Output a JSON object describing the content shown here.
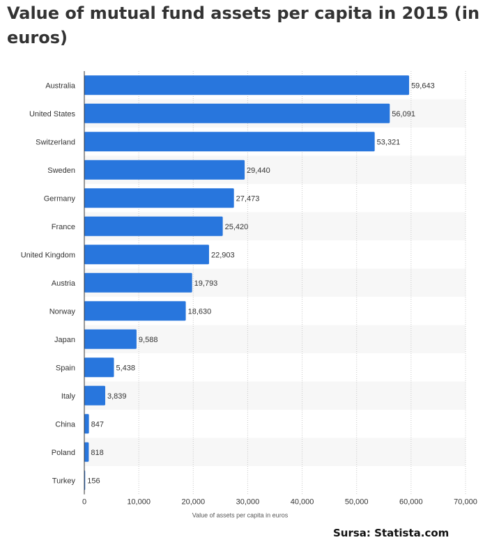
{
  "title": "Value of mutual fund assets per capita in 2015 (in euros)",
  "source": "Sursa: Statista.com",
  "chart_data": {
    "type": "bar",
    "orientation": "horizontal",
    "title": "Value of mutual fund assets per capita in 2015 (in euros)",
    "xlabel": "Value of assets per capita in euros",
    "ylabel": "",
    "xlim": [
      0,
      70000
    ],
    "xticks": [
      0,
      10000,
      20000,
      30000,
      40000,
      50000,
      60000,
      70000
    ],
    "xtick_labels": [
      "0",
      "10,000",
      "20,000",
      "30,000",
      "40,000",
      "50,000",
      "60,000",
      "70,000"
    ],
    "grid": true,
    "categories": [
      "Australia",
      "United States",
      "Switzerland",
      "Sweden",
      "Germany",
      "France",
      "United Kingdom",
      "Austria",
      "Norway",
      "Japan",
      "Spain",
      "Italy",
      "China",
      "Poland",
      "Turkey"
    ],
    "values": [
      59643,
      56091,
      53321,
      29440,
      27473,
      25420,
      22903,
      19793,
      18630,
      9588,
      5438,
      3839,
      847,
      818,
      156
    ],
    "value_labels": [
      "59,643",
      "56,091",
      "53,321",
      "29,440",
      "27,473",
      "25,420",
      "22,903",
      "19,793",
      "18,630",
      "9,588",
      "5,438",
      "3,839",
      "847",
      "818",
      "156"
    ],
    "bar_color": "#2876dd",
    "stripe_color": "#f7f7f7"
  }
}
